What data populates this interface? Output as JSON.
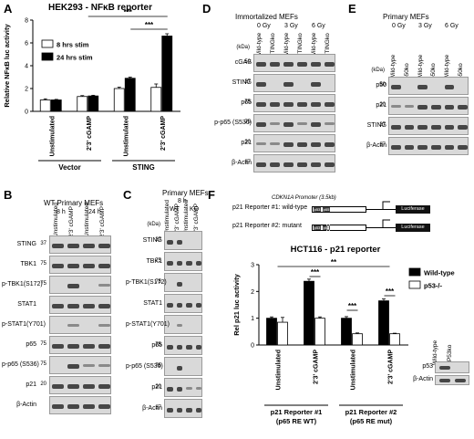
{
  "panels": {
    "A": "A",
    "B": "B",
    "C": "C",
    "D": "D",
    "E": "E",
    "F": "F"
  },
  "chart_data": [
    {
      "type": "bar",
      "title": "HEK293 - NFκB reporter",
      "ylabel": "Relative NFκB luc activity",
      "ylim": [
        0,
        8
      ],
      "yticks": [
        "0",
        "2",
        "4",
        "6",
        "8"
      ],
      "categories": [
        "Unstimulated",
        "2'3' cGAMP",
        "Unstimulated",
        "2'3' cGAMP"
      ],
      "groups": [
        {
          "label": "Vector"
        },
        {
          "label": "STING"
        }
      ],
      "series": [
        {
          "name": "8 hrs stim",
          "color": "#ffffff",
          "values": [
            1.0,
            1.3,
            2.0,
            2.1
          ],
          "err": [
            0.1,
            0.08,
            0.12,
            0.3
          ]
        },
        {
          "name": "24 hrs stim",
          "color": "#000000",
          "values": [
            1.0,
            1.35,
            2.9,
            6.6
          ],
          "err": [
            0.05,
            0.06,
            0.1,
            0.2
          ]
        }
      ],
      "annotations": [
        "***",
        "***"
      ]
    },
    {
      "type": "bar",
      "title": "HCT116 - p21 reporter",
      "ylabel": "Rel p21 luc activity",
      "ylim": [
        0,
        3
      ],
      "yticks": [
        "0",
        "1",
        "2",
        "3"
      ],
      "categories": [
        "Unstimulated",
        "2'3' cGAMP",
        "Unstimulated",
        "2'3' cGAMP"
      ],
      "groups": [
        {
          "label": "p21 Reporter #1",
          "sub": "(p65 RE WT)"
        },
        {
          "label": "p21 Reporter #2",
          "sub": "(p65 RE mut)"
        }
      ],
      "series": [
        {
          "name": "Wild-type",
          "color": "#000000",
          "values": [
            1.0,
            2.38,
            1.0,
            1.65
          ],
          "err": [
            0.05,
            0.08,
            0.06,
            0.07
          ]
        },
        {
          "name": "p53-/-",
          "color": "#ffffff",
          "values": [
            0.85,
            1.0,
            0.42,
            0.42
          ],
          "err": [
            0.18,
            0.05,
            0.03,
            0.02
          ]
        }
      ],
      "annotations": [
        "***",
        "***",
        "***",
        "**"
      ]
    }
  ],
  "blotB": {
    "title": "WT Primary MEFs",
    "times": [
      "8 h",
      "24 h"
    ],
    "lanes": [
      "Unstimulated",
      "2'3' cGAMP",
      "Unstimulated",
      "2'3' cGAMP"
    ],
    "rows": [
      {
        "label": "STING",
        "kda": "37"
      },
      {
        "label": "TBK1",
        "kda": "75"
      },
      {
        "label": "p-TBK1(S172)",
        "kda": "75"
      },
      {
        "label": "STAT1",
        "kda": ""
      },
      {
        "label": "p-STAT1(Y701)",
        "kda": ""
      },
      {
        "label": "p65",
        "kda": "75"
      },
      {
        "label": "p-p65 (S536)",
        "kda": "75"
      },
      {
        "label": "p21",
        "kda": "20"
      },
      {
        "label": "β-Actin",
        "kda": ""
      }
    ]
  },
  "blotC": {
    "title": "Primary MEFs",
    "time": "8 h",
    "groups": [
      "WT",
      "KO"
    ],
    "kda_unit": "(kDa)",
    "lanes": [
      "Unstimulated",
      "2'3' cGAMP",
      "Unstimulated",
      "2'3' cGAMP"
    ],
    "rows": [
      {
        "label": "STING",
        "kda": "37"
      },
      {
        "label": "TBK1",
        "kda": "75"
      },
      {
        "label": "p-TBK1(S172)",
        "kda": "75"
      },
      {
        "label": "STAT1",
        "kda": ""
      },
      {
        "label": "p-STAT1(Y701)",
        "kda": ""
      },
      {
        "label": "p65",
        "kda": "75"
      },
      {
        "label": "p-p65 (S536)",
        "kda": "75"
      },
      {
        "label": "p21",
        "kda": "20"
      },
      {
        "label": "β-Actin",
        "kda": "37"
      }
    ]
  },
  "blotD": {
    "title": "Immortalized MEFs",
    "doses": [
      "0 Gy",
      "3 Gy",
      "6 Gy"
    ],
    "kda_unit": "(kDa)",
    "lanes": [
      "Wild-type",
      "STINGko",
      "Wild-type",
      "STINGko",
      "Wild-type",
      "STINGko"
    ],
    "rows": [
      {
        "label": "cGAS",
        "kda": "50"
      },
      {
        "label": "STING",
        "kda": "37"
      },
      {
        "label": "p65",
        "kda": "75"
      },
      {
        "label": "p-p65 (S536)",
        "kda": "75"
      },
      {
        "label": "p21",
        "kda": "20"
      },
      {
        "label": "β-Actin",
        "kda": "37"
      }
    ]
  },
  "blotE": {
    "title": "Primary MEFs",
    "doses": [
      "0 Gy",
      "3 Gy",
      "6 Gy"
    ],
    "kda_unit": "(kDa)",
    "lanes": [
      "Wild-type",
      "p50ko",
      "Wild-type",
      "p50ko",
      "Wild-type",
      "p50ko"
    ],
    "rows": [
      {
        "label": "p50",
        "kda": "50"
      },
      {
        "label": "p21",
        "kda": "20"
      },
      {
        "label": "STING",
        "kda": "37"
      },
      {
        "label": "β-Actin",
        "kda": "37"
      }
    ]
  },
  "reporters": {
    "promoter": "CDKN1A Promoter (3.5kb)",
    "r1": "p21 Reporter #1:",
    "r1type": "wild-type",
    "r2": "p21 Reporter #2:",
    "r2type": "mutant",
    "luc": "Luciferase",
    "p53": "p53",
    "p65": "p65"
  },
  "inset": {
    "lanes": [
      "Wild-type",
      "TP53ko"
    ],
    "rows": [
      "p53",
      "β-Actin"
    ]
  }
}
